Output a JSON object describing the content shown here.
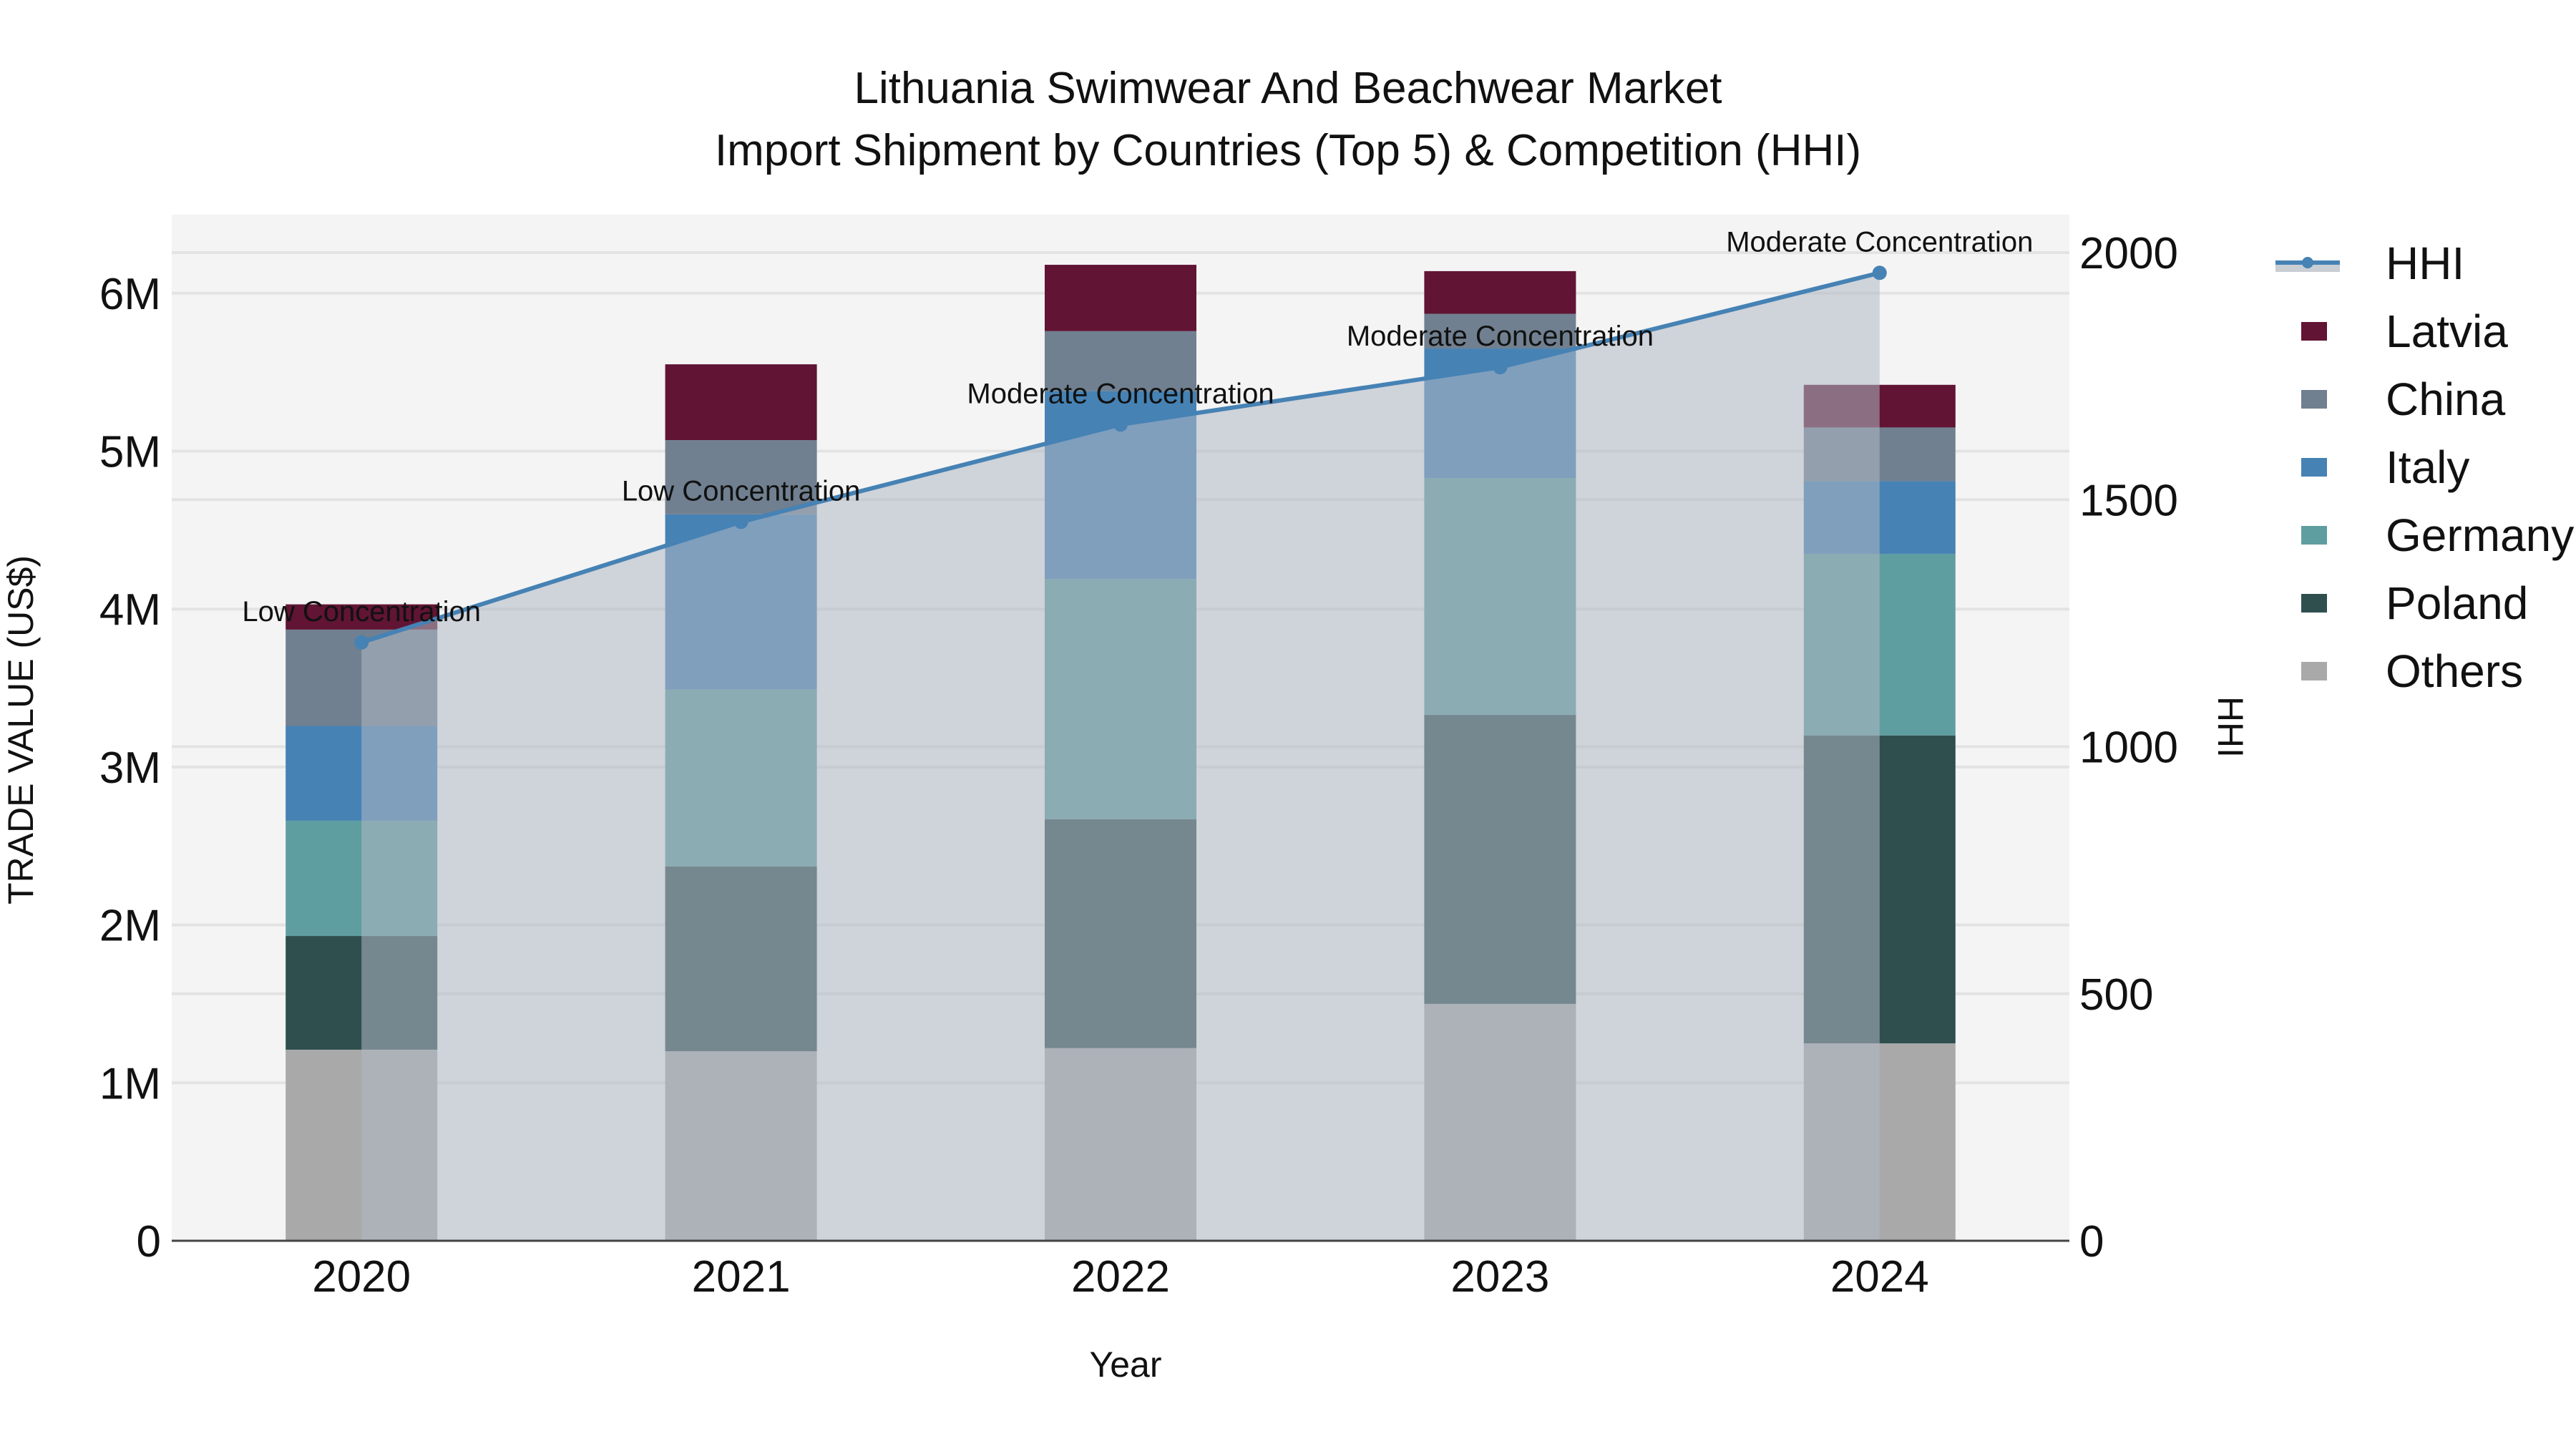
{
  "title": {
    "line1": "Lithuania Swimwear And Beachwear Market",
    "line2": "Import Shipment by Countries (Top 5) & Competition (HHI)"
  },
  "axes": {
    "x_title": "Year",
    "y_title": "TRADE VALUE (US$)",
    "y2_title": "HHI",
    "y_ticks": [
      "0",
      "1M",
      "2M",
      "3M",
      "4M",
      "5M",
      "6M"
    ],
    "y2_ticks": [
      "0",
      "500",
      "1000",
      "1500",
      "2000"
    ],
    "x_ticks": [
      "2020",
      "2021",
      "2022",
      "2023",
      "2024"
    ]
  },
  "legend": {
    "items": [
      {
        "label": "HHI",
        "color": "#4682B4",
        "type": "line"
      },
      {
        "label": "Latvia",
        "color": "#611434",
        "type": "bar"
      },
      {
        "label": "China",
        "color": "#708090",
        "type": "bar"
      },
      {
        "label": "Italy",
        "color": "#4682B4",
        "type": "bar"
      },
      {
        "label": "Germany",
        "color": "#5F9EA0",
        "type": "bar"
      },
      {
        "label": "Poland",
        "color": "#2F4F4F",
        "type": "bar"
      },
      {
        "label": "Others",
        "color": "#A9A9A9",
        "type": "bar"
      }
    ]
  },
  "colors": {
    "plot_bg": "#F4F4F4",
    "grid": "#E3E3E3",
    "hhi_line": "#4682B4",
    "hhi_fill": "#B0B8C4"
  },
  "chart_data": {
    "type": "bar",
    "title": "Lithuania Swimwear And Beachwear Market — Import Shipment by Countries (Top 5) & Competition (HHI)",
    "xlabel": "Year",
    "ylabel": "TRADE VALUE (US$)",
    "y2label": "HHI",
    "ylim": [
      0,
      6500000
    ],
    "y2lim": [
      0,
      2175
    ],
    "grid": true,
    "legend_position": "right",
    "barmode": "stack",
    "categories": [
      "2020",
      "2021",
      "2022",
      "2023",
      "2024"
    ],
    "series": [
      {
        "name": "Others",
        "color": "#A9A9A9",
        "values": [
          1210000,
          1200000,
          1220000,
          1500000,
          1250000
        ]
      },
      {
        "name": "Poland",
        "color": "#2F4F4F",
        "values": [
          720000,
          1170000,
          1450000,
          1830000,
          1950000
        ]
      },
      {
        "name": "Germany",
        "color": "#5F9EA0",
        "values": [
          730000,
          1120000,
          1520000,
          1500000,
          1150000
        ]
      },
      {
        "name": "Italy",
        "color": "#4682B4",
        "values": [
          600000,
          1110000,
          1190000,
          820000,
          460000
        ]
      },
      {
        "name": "China",
        "color": "#708090",
        "values": [
          610000,
          470000,
          380000,
          220000,
          340000
        ]
      },
      {
        "name": "Latvia",
        "color": "#611434",
        "values": [
          160000,
          480000,
          420000,
          270000,
          270000
        ]
      }
    ],
    "line_series": {
      "name": "HHI",
      "axis": "y2",
      "color": "#4682B4",
      "fill": "tozeroy",
      "values": [
        1211,
        1455,
        1652,
        1768,
        1959
      ],
      "annotations": [
        "Low Concentration",
        "Low Concentration",
        "Moderate Concentration",
        "Moderate Concentration",
        "Moderate Concentration"
      ]
    }
  }
}
